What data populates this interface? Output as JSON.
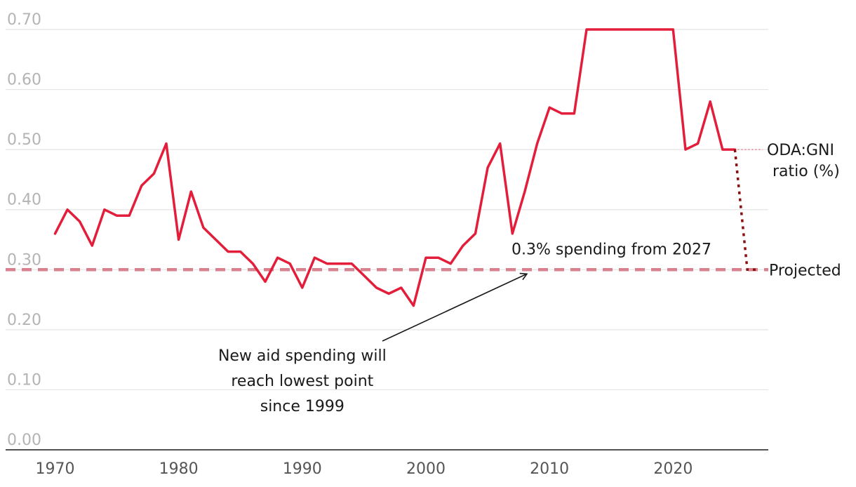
{
  "chart_data": {
    "type": "line",
    "title": "",
    "xlabel": "",
    "ylabel": "",
    "xlim": [
      1966,
      2027.7
    ],
    "ylim": [
      0,
      0.7
    ],
    "grid": "horizontal",
    "y_ticks": [
      "0.00",
      "0.10",
      "0.20",
      "0.30",
      "0.40",
      "0.50",
      "0.60",
      "0.70"
    ],
    "x_ticks": [
      "1970",
      "1980",
      "1990",
      "2000",
      "2010",
      "2020"
    ],
    "series": [
      {
        "name": "ODA:GNI ratio (%)",
        "color": "#e31e3b",
        "x": [
          1970,
          1971,
          1972,
          1973,
          1974,
          1975,
          1976,
          1977,
          1978,
          1979,
          1980,
          1981,
          1982,
          1983,
          1984,
          1985,
          1986,
          1987,
          1988,
          1989,
          1990,
          1991,
          1992,
          1993,
          1994,
          1995,
          1996,
          1997,
          1998,
          1999,
          2000,
          2001,
          2002,
          2003,
          2004,
          2005,
          2006,
          2007,
          2008,
          2009,
          2010,
          2011,
          2012,
          2013,
          2014,
          2015,
          2016,
          2017,
          2018,
          2019,
          2020,
          2021,
          2022,
          2023,
          2024,
          2025
        ],
        "y": [
          0.36,
          0.4,
          0.38,
          0.34,
          0.4,
          0.39,
          0.39,
          0.44,
          0.46,
          0.51,
          0.35,
          0.43,
          0.37,
          0.35,
          0.33,
          0.33,
          0.31,
          0.28,
          0.32,
          0.31,
          0.27,
          0.32,
          0.31,
          0.31,
          0.31,
          0.29,
          0.27,
          0.26,
          0.27,
          0.24,
          0.32,
          0.32,
          0.31,
          0.34,
          0.36,
          0.47,
          0.51,
          0.36,
          0.43,
          0.51,
          0.57,
          0.56,
          0.56,
          0.7,
          0.7,
          0.7,
          0.7,
          0.7,
          0.7,
          0.7,
          0.7,
          0.5,
          0.51,
          0.58,
          0.5,
          0.5
        ]
      },
      {
        "name": "Projected",
        "color": "#8b1010",
        "style": "dotted",
        "x": [
          2025,
          2026,
          2027
        ],
        "y": [
          0.5,
          0.3,
          0.3
        ]
      }
    ],
    "reference_line": {
      "y": 0.3,
      "color": "#d9828f",
      "style": "dashed"
    },
    "annotations": {
      "threshold_label": "0.3% spending from 2027",
      "callout_lines": [
        "New aid spending will",
        "reach lowest point",
        "since 1999"
      ]
    },
    "end_labels": {
      "oda_line1": "ODA:GNI",
      "oda_line2": "ratio (%)",
      "projected": "Projected"
    }
  }
}
